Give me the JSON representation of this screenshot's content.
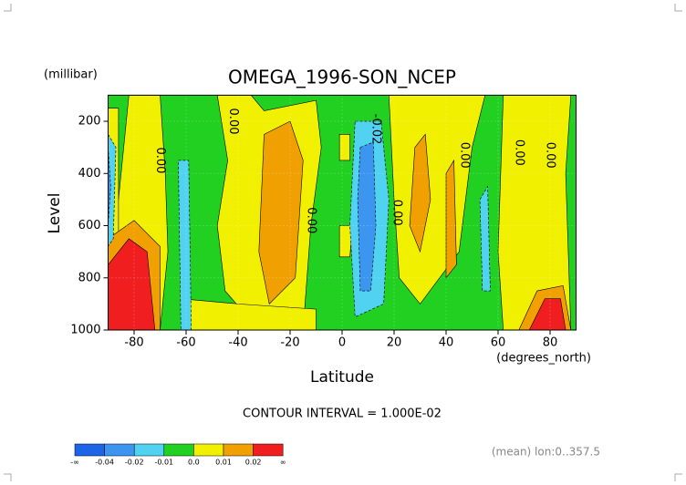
{
  "chart_data": {
    "type": "contour",
    "title": "OMEGA_1996-SON_NCEP",
    "y_unit": "(millibar)",
    "y_label": "Level",
    "x_label": "Latitude",
    "x_unit": "(degrees_north)",
    "contour_note": "CONTOUR INTERVAL = 1.000E-02",
    "footnote": "(mean) lon:0..357.5",
    "xlim": [
      -90,
      90
    ],
    "xticks": [
      -80,
      -60,
      -40,
      -20,
      0,
      20,
      40,
      60,
      80
    ],
    "ylim": [
      1000,
      100
    ],
    "yticks": [
      200,
      400,
      600,
      800,
      1000
    ],
    "grid": true,
    "background_band": 3,
    "colorbar": {
      "colors": [
        "#1e64e6",
        "#3c96f0",
        "#50d2f0",
        "#22d022",
        "#f0f000",
        "#f0a000",
        "#f01e1e"
      ],
      "labels": [
        "-∞",
        "-0.04",
        "-0.02",
        "-0.01",
        "0.0",
        "0.01",
        "0.02",
        "∞"
      ]
    },
    "regions": [
      {
        "band": 4,
        "lat": [
          -82,
          -70,
          -68,
          -67,
          -70,
          -88,
          -90,
          -86,
          -84
        ],
        "level": [
          100,
          100,
          400,
          700,
          1000,
          1000,
          700,
          500,
          300
        ]
      },
      {
        "band": 4,
        "lat": [
          -90,
          -86,
          -86,
          -90
        ],
        "level": [
          150,
          150,
          700,
          700
        ]
      },
      {
        "band": 4,
        "lat": [
          -48,
          -35,
          -30,
          -10,
          -8,
          -12,
          -15,
          -32,
          -45,
          -48,
          -44
        ],
        "level": [
          100,
          100,
          160,
          120,
          300,
          600,
          1000,
          1000,
          850,
          600,
          350
        ]
      },
      {
        "band": 4,
        "lat": [
          -62,
          -40,
          -10,
          -10,
          -60
        ],
        "level": [
          880,
          900,
          920,
          1000,
          1000
        ]
      },
      {
        "band": 4,
        "lat": [
          -1,
          3,
          3,
          -1
        ],
        "level": [
          250,
          250,
          350,
          350
        ]
      },
      {
        "band": 4,
        "lat": [
          -1,
          4,
          3,
          -1
        ],
        "level": [
          600,
          600,
          720,
          720
        ]
      },
      {
        "band": 4,
        "lat": [
          18,
          55,
          50,
          45,
          30,
          22,
          20
        ],
        "level": [
          100,
          100,
          300,
          700,
          900,
          800,
          500
        ]
      },
      {
        "band": 4,
        "lat": [
          62,
          88,
          86,
          88,
          62,
          60
        ],
        "level": [
          100,
          100,
          400,
          1000,
          1000,
          700
        ]
      },
      {
        "band": 5,
        "lat": [
          -30,
          -20,
          -15,
          -18,
          -28,
          -32
        ],
        "level": [
          250,
          200,
          350,
          800,
          900,
          700
        ]
      },
      {
        "band": 5,
        "lat": [
          28,
          32,
          34,
          30,
          26
        ],
        "level": [
          300,
          250,
          500,
          700,
          600
        ]
      },
      {
        "band": 5,
        "lat": [
          40,
          43,
          44,
          40
        ],
        "level": [
          400,
          350,
          750,
          800
        ]
      },
      {
        "band": 5,
        "lat": [
          68,
          75,
          85,
          88
        ],
        "level": [
          1000,
          850,
          830,
          1000
        ]
      },
      {
        "band": 5,
        "lat": [
          -90,
          -80,
          -70,
          -70,
          -90
        ],
        "level": [
          650,
          580,
          680,
          1000,
          1000
        ]
      },
      {
        "band": 6,
        "lat": [
          -90,
          -82,
          -75,
          -72,
          -90
        ],
        "level": [
          750,
          650,
          700,
          1000,
          1000
        ]
      },
      {
        "band": 6,
        "lat": [
          72,
          78,
          84,
          86
        ],
        "level": [
          1000,
          880,
          880,
          1000
        ]
      },
      {
        "band": 2,
        "lat": [
          -63,
          -59,
          -58,
          -62
        ],
        "level": [
          350,
          350,
          1000,
          1000
        ]
      },
      {
        "band": 2,
        "lat": [
          5,
          15,
          18,
          16,
          5,
          3
        ],
        "level": [
          200,
          200,
          500,
          900,
          950,
          600
        ]
      },
      {
        "band": 2,
        "lat": [
          -90,
          -87,
          -88,
          -90
        ],
        "level": [
          250,
          300,
          650,
          680
        ]
      },
      {
        "band": 2,
        "lat": [
          53,
          56,
          57,
          54
        ],
        "level": [
          500,
          450,
          850,
          850
        ]
      },
      {
        "band": 1,
        "lat": [
          7,
          12,
          13,
          11,
          7,
          6
        ],
        "level": [
          300,
          280,
          600,
          850,
          850,
          500
        ]
      },
      {
        "band": 1,
        "lat": [
          -90,
          -89,
          -90
        ],
        "level": [
          300,
          450,
          600
        ]
      }
    ],
    "contour_labels": [
      {
        "text": "0.00",
        "lat": -70,
        "level": 350
      },
      {
        "text": "0.00",
        "lat": -42,
        "level": 200
      },
      {
        "text": "0.00",
        "lat": -12,
        "level": 580
      },
      {
        "text": "-0.02",
        "lat": 13,
        "level": 230
      },
      {
        "text": "0.00",
        "lat": 21,
        "level": 550
      },
      {
        "text": "0.00",
        "lat": 47,
        "level": 330
      },
      {
        "text": "0.00",
        "lat": 68,
        "level": 320
      },
      {
        "text": "0.00",
        "lat": 80,
        "level": 330
      }
    ]
  }
}
